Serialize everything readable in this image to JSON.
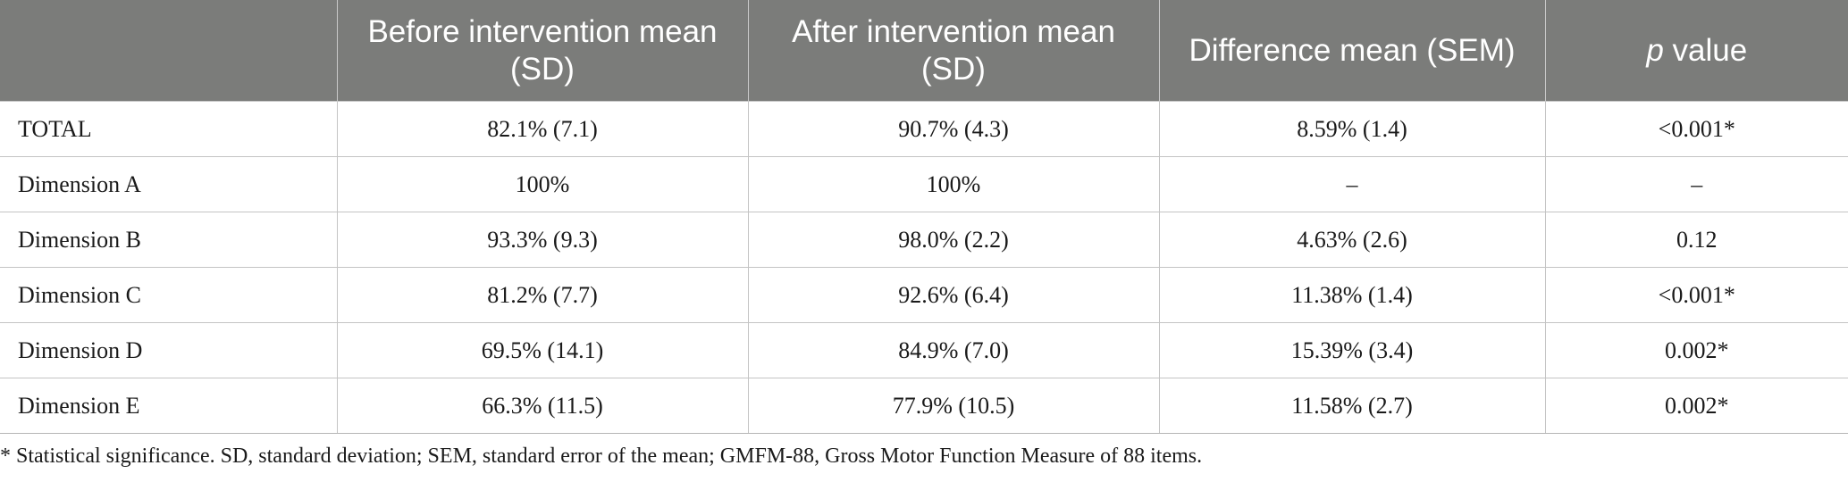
{
  "table": {
    "headers": [
      {
        "text": "",
        "italic": ""
      },
      {
        "text": "Before intervention mean (SD)",
        "italic": ""
      },
      {
        "text": "After intervention mean (SD)",
        "italic": ""
      },
      {
        "text": "Difference mean (SEM)",
        "italic": ""
      },
      {
        "text": " value",
        "italic": "p"
      }
    ],
    "rows": [
      [
        "TOTAL",
        "82.1% (7.1)",
        "90.7% (4.3)",
        "8.59% (1.4)",
        "<0.001*"
      ],
      [
        "Dimension A",
        "100%",
        "100%",
        "–",
        "–"
      ],
      [
        "Dimension B",
        "93.3% (9.3)",
        "98.0% (2.2)",
        "4.63% (2.6)",
        "0.12"
      ],
      [
        "Dimension C",
        "81.2% (7.7)",
        "92.6% (6.4)",
        "11.38% (1.4)",
        "<0.001*"
      ],
      [
        "Dimension D",
        "69.5% (14.1)",
        "84.9% (7.0)",
        "15.39% (3.4)",
        "0.002*"
      ],
      [
        "Dimension E",
        "66.3% (11.5)",
        "77.9% (10.5)",
        "11.58% (2.7)",
        "0.002*"
      ]
    ]
  },
  "footnote": "* Statistical significance. SD, standard deviation; SEM, standard error of the mean; GMFM-88, Gross Motor Function Measure of 88 items.",
  "colors": {
    "header_background": "#7b7c7a",
    "header_text": "#ffffff",
    "grid_lines": "#c4c4c4"
  }
}
